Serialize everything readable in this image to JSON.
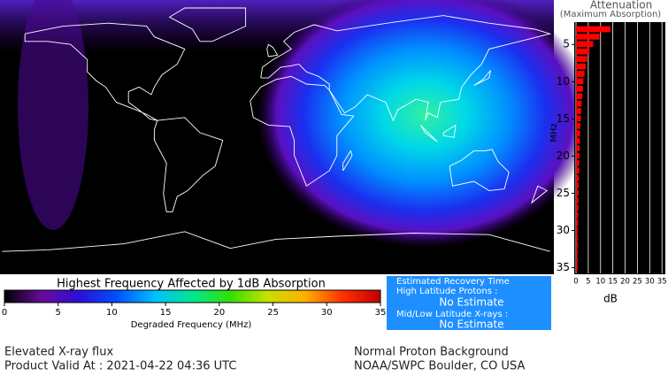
{
  "colorbar": {
    "title": "Highest Frequency Affected by 1dB Absorption",
    "label": "Degraded Frequency (MHz)",
    "lim": [
      0,
      35
    ],
    "ticks": [
      0,
      5,
      10,
      15,
      20,
      25,
      30,
      35
    ],
    "colormap": [
      "#000000",
      "#6a0a9c",
      "#2a10d8",
      "#0050ff",
      "#00c0ff",
      "#00e890",
      "#30e000",
      "#c8e000",
      "#ffb000",
      "#ff3000",
      "#c00000"
    ]
  },
  "recovery": {
    "title": "Estimated Recovery Time",
    "high_label": "High Latitude Protons :",
    "high_value": "No Estimate",
    "low_label": "Mid/Low Latitude X-rays :",
    "low_value": "No Estimate",
    "background": "#1e8fff"
  },
  "footer": {
    "left": [
      "Elevated X-ray flux",
      "Product Valid At : 2021-04-22 04:36 UTC"
    ],
    "right": [
      "Normal Proton Background",
      "NOAA/SWPC Boulder, CO USA"
    ]
  },
  "chart_data": {
    "type": "bar",
    "title": "Attenuation",
    "subtitle": "(Maximum Absorption)",
    "y_label": "MHz",
    "x_label": "dB",
    "categories": [
      3,
      4,
      5,
      6,
      7,
      8,
      9,
      10,
      11,
      12,
      13,
      14,
      15,
      16,
      17,
      18,
      19,
      20,
      21,
      22,
      23,
      24,
      25,
      26,
      27,
      28,
      29,
      30,
      31,
      32,
      33,
      34,
      35
    ],
    "values": [
      14,
      9.5,
      7,
      5.5,
      4.5,
      4,
      3.5,
      3,
      2.8,
      2.5,
      2.3,
      2.1,
      2,
      1.8,
      1.7,
      1.6,
      1.5,
      1.4,
      1.3,
      1.3,
      1.2,
      1.1,
      1.1,
      1,
      1,
      0.9,
      0.9,
      0.8,
      0.8,
      0.8,
      0.7,
      0.7,
      0.7
    ],
    "color": "#ff0000",
    "xlim": [
      0,
      36
    ],
    "xticks": [
      0,
      5,
      10,
      15,
      20,
      25,
      30,
      35
    ],
    "ylim": [
      2,
      36
    ],
    "yticks": [
      5,
      10,
      15,
      20,
      25,
      30,
      35
    ],
    "grid": true
  }
}
